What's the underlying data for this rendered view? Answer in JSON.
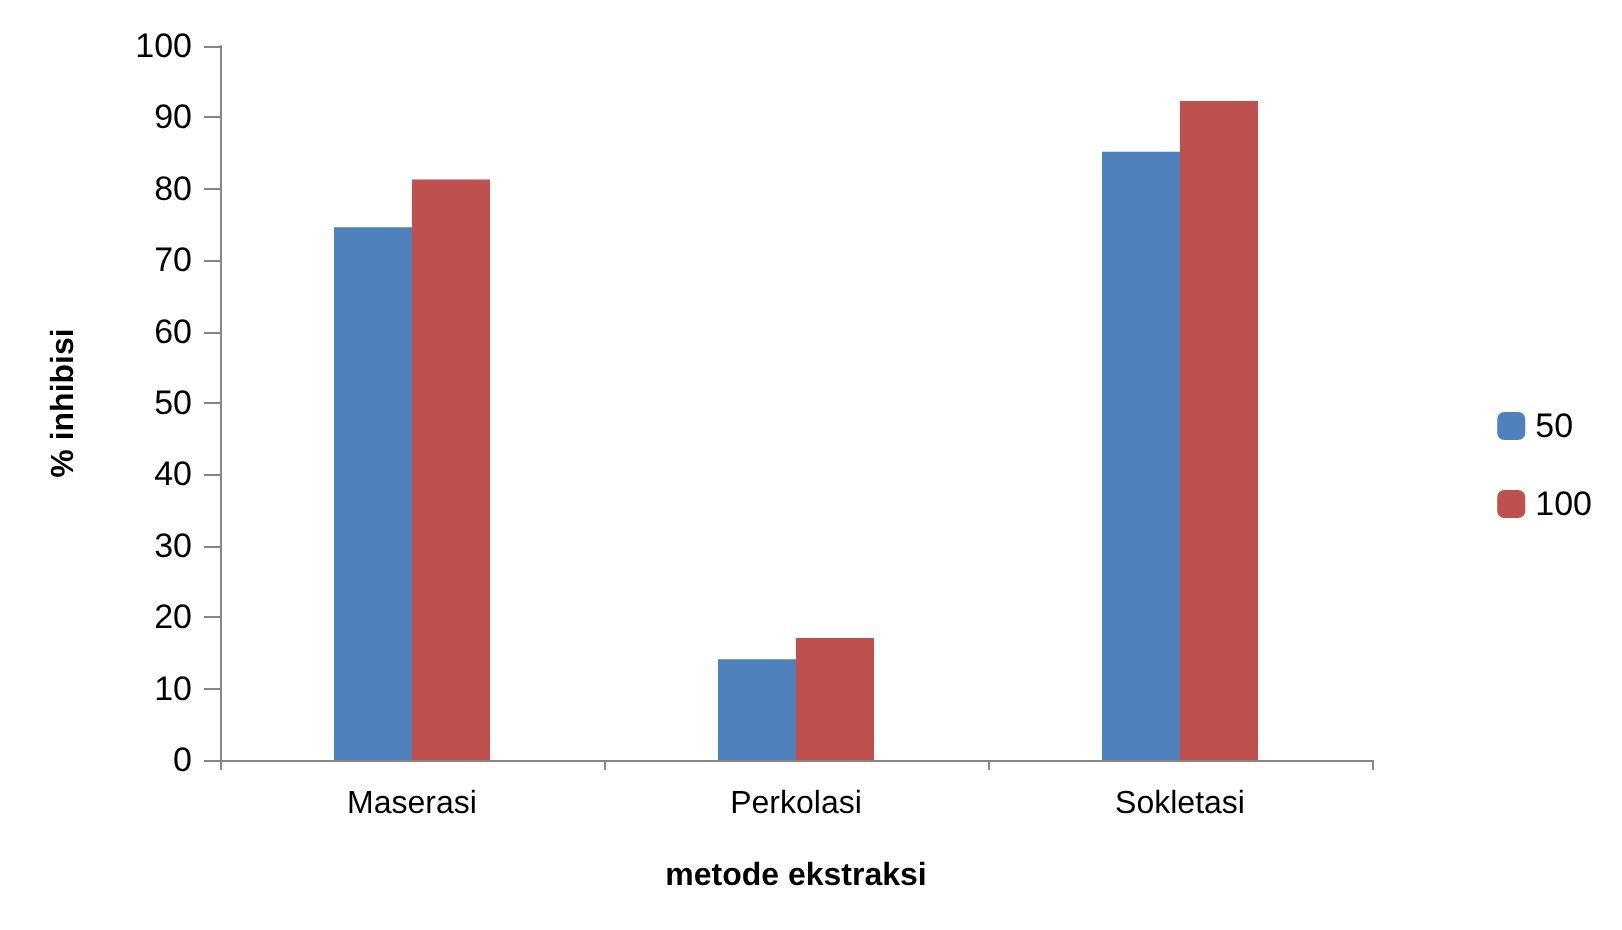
{
  "chart_data": {
    "type": "bar",
    "xlabel": "metode ekstraksi",
    "ylabel": "% inhibisi",
    "categories": [
      "Maserasi",
      "Perkolasi",
      "Sokletasi"
    ],
    "series": [
      {
        "name": "50",
        "color": "#4f81bd",
        "values": [
          74.6,
          14.1,
          85.2
        ]
      },
      {
        "name": "100",
        "color": "#c0504d",
        "values": [
          81.3,
          17.1,
          92.3
        ]
      }
    ],
    "ylim": [
      0,
      100
    ],
    "yticks": [
      0,
      10,
      20,
      30,
      40,
      50,
      60,
      70,
      80,
      90,
      100
    ],
    "grid": false,
    "legend": "right"
  }
}
